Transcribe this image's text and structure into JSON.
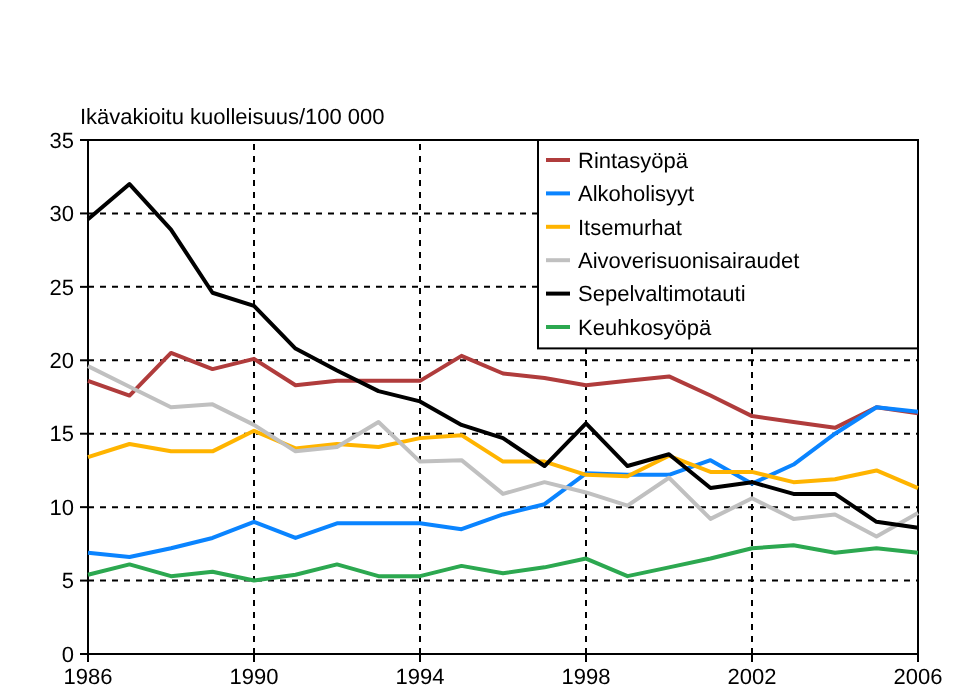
{
  "chart_data": {
    "type": "line",
    "ylabel": "Ikävakioitu kuolleisuus/100 000",
    "x": [
      1986,
      1987,
      1988,
      1989,
      1990,
      1991,
      1992,
      1993,
      1994,
      1995,
      1996,
      1997,
      1998,
      1999,
      2000,
      2001,
      2002,
      2003,
      2004,
      2005,
      2006
    ],
    "xlim": [
      1986,
      2006
    ],
    "xticks": [
      1986,
      1990,
      1994,
      1998,
      2002,
      2006
    ],
    "ylim": [
      0,
      35
    ],
    "yticks": [
      0,
      5,
      10,
      15,
      20,
      25,
      30,
      35
    ],
    "grid": true,
    "legend": "top right",
    "marker": "none",
    "line_style": "solid",
    "series": [
      {
        "name": "Rintasyöpä",
        "color": "#b03c3c",
        "values": [
          18.6,
          17.6,
          20.5,
          19.4,
          20.1,
          18.3,
          18.6,
          18.6,
          18.6,
          20.3,
          19.1,
          18.8,
          18.3,
          18.6,
          18.9,
          17.6,
          16.2,
          15.8,
          15.4,
          16.8,
          16.4
        ]
      },
      {
        "name": "Alkoholisyyt",
        "color": "#0a84ff",
        "values": [
          6.9,
          6.6,
          7.2,
          7.9,
          9.0,
          7.9,
          8.9,
          8.9,
          8.9,
          8.5,
          9.5,
          10.2,
          12.3,
          12.2,
          12.2,
          13.2,
          11.6,
          12.9,
          15.0,
          16.8,
          16.5
        ]
      },
      {
        "name": "Itsemurhat",
        "color": "#ffb400",
        "values": [
          13.4,
          14.3,
          13.8,
          13.8,
          15.2,
          14.0,
          14.3,
          14.1,
          14.7,
          14.9,
          13.1,
          13.1,
          12.2,
          12.1,
          13.5,
          12.4,
          12.4,
          11.7,
          11.9,
          12.5,
          11.3
        ]
      },
      {
        "name": "Aivoverisuonisairaudet",
        "color": "#c0c0c0",
        "values": [
          19.6,
          18.2,
          16.8,
          17.0,
          15.6,
          13.8,
          14.1,
          15.8,
          13.1,
          13.2,
          10.9,
          11.7,
          11.0,
          10.1,
          12.0,
          9.2,
          10.6,
          9.2,
          9.5,
          8.0,
          9.6
        ]
      },
      {
        "name": "Sepelvaltimotauti",
        "color": "#000000",
        "values": [
          29.6,
          32.0,
          28.9,
          24.6,
          23.7,
          20.8,
          19.3,
          17.9,
          17.2,
          15.6,
          14.7,
          12.8,
          15.7,
          12.8,
          13.6,
          11.3,
          11.7,
          10.9,
          10.9,
          9.0,
          8.6
        ]
      },
      {
        "name": "Keuhkosyöpä",
        "color": "#2ca850",
        "values": [
          5.4,
          6.1,
          5.3,
          5.6,
          5.0,
          5.4,
          6.1,
          5.3,
          5.3,
          6.0,
          5.5,
          5.9,
          6.5,
          5.3,
          5.9,
          6.5,
          7.2,
          7.4,
          6.9,
          7.2,
          6.9
        ]
      }
    ]
  }
}
